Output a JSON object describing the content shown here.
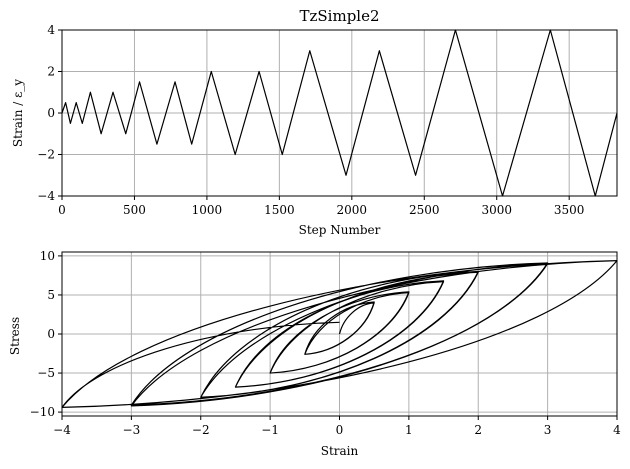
{
  "chart_data": [
    {
      "type": "line",
      "title": "TzSimple2",
      "xlabel": "Step Number",
      "ylabel": "Strain / ε_y",
      "xlim": [
        0,
        3830
      ],
      "ylim": [
        -4,
        4
      ],
      "xticks": [
        0,
        500,
        1000,
        1500,
        2000,
        2500,
        3000,
        3500
      ],
      "yticks": [
        -4,
        -2,
        0,
        2,
        4
      ],
      "grid": true,
      "series": [
        {
          "x": [
            0,
            25,
            58,
            98,
            140,
            196,
            270,
            352,
            440,
            535,
            655,
            780,
            895,
            1030,
            1195,
            1360,
            1520,
            1710,
            1960,
            2190,
            2440,
            2715,
            3040,
            3370,
            3680,
            3830
          ],
          "values": [
            0,
            0.5,
            -0.5,
            0.5,
            -0.5,
            1,
            -1,
            1,
            -1,
            1.5,
            -1.5,
            1.5,
            -1.5,
            2,
            -2,
            2,
            -2,
            3,
            -3,
            3,
            -3,
            4,
            -4,
            4,
            -4,
            0
          ]
        }
      ]
    },
    {
      "type": "line",
      "title": "",
      "xlabel": "Strain",
      "ylabel": "Stress",
      "xlim": [
        -4,
        4
      ],
      "ylim": [
        -10.5,
        10.5
      ],
      "xticks": [
        -4,
        -3,
        -2,
        -1,
        0,
        1,
        2,
        3,
        4
      ],
      "yticks": [
        -10,
        -5,
        0,
        5,
        10
      ],
      "grid": true,
      "series": [
        {
          "x": [
            0,
            0.5,
            -0.5,
            0.5,
            -0.5,
            1,
            -1,
            1,
            -1,
            1.5,
            -1.5,
            1.5,
            -1.5,
            2,
            -2,
            2,
            -2,
            3,
            -3,
            3,
            -3,
            4,
            -4,
            4,
            -4,
            0
          ],
          "values": [
            0,
            4.0,
            -2.6,
            4.1,
            -2.6,
            5.3,
            -5.0,
            5.4,
            -5.0,
            6.7,
            -6.8,
            6.8,
            -6.8,
            7.9,
            -8.1,
            8.0,
            -8.1,
            9.0,
            -9.1,
            9.1,
            -9.2,
            9.4,
            -9.4,
            9.4,
            -9.4,
            1.5
          ]
        }
      ]
    }
  ],
  "tick_labels": {
    "top_x": [
      "0",
      "500",
      "1000",
      "1500",
      "2000",
      "2500",
      "3000",
      "3500"
    ],
    "top_y": [
      "4",
      "2",
      "0",
      "−2",
      "−4"
    ],
    "bottom_x": [
      "−4",
      "−3",
      "−2",
      "−1",
      "0",
      "1",
      "2",
      "3",
      "4"
    ],
    "bottom_y": [
      "10",
      "5",
      "0",
      "−5",
      "−10"
    ]
  }
}
